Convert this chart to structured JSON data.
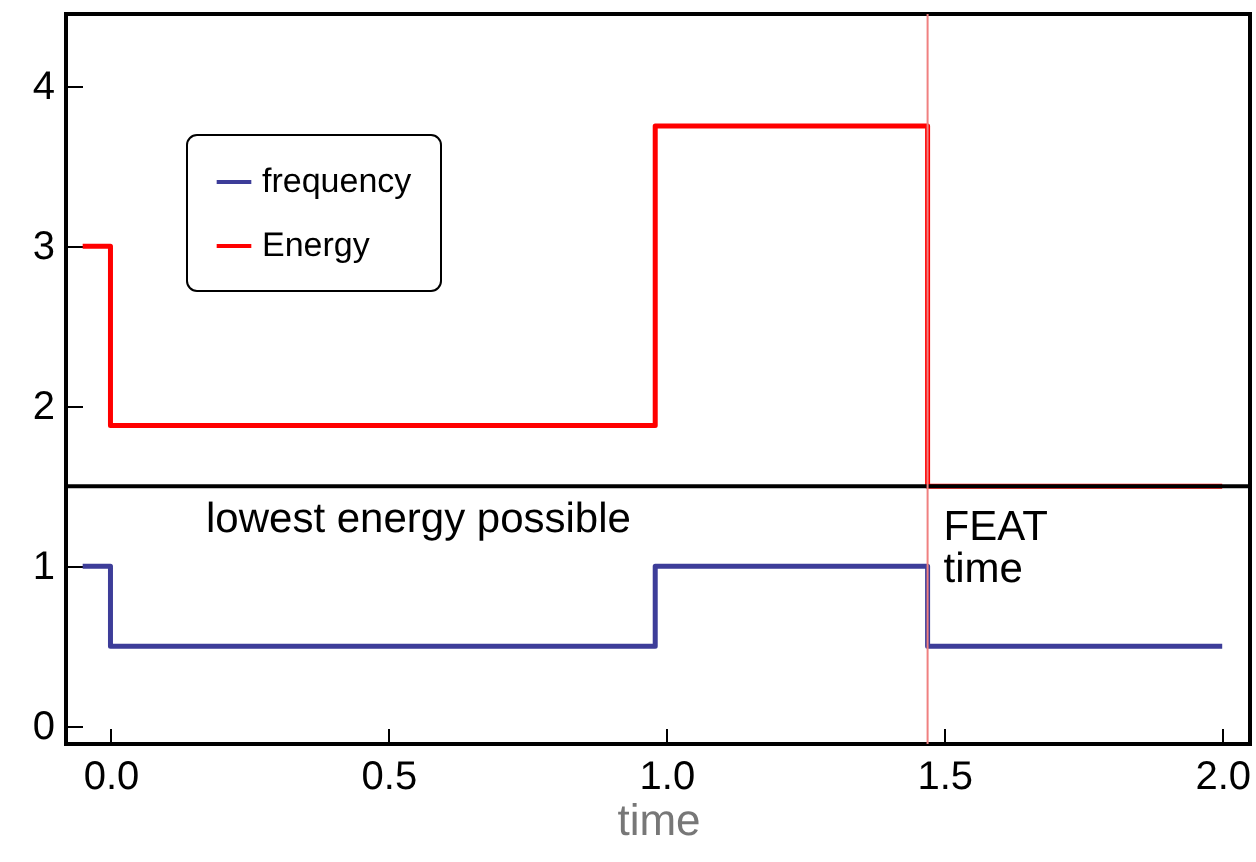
{
  "chart_data": {
    "type": "step",
    "xlabel": "time",
    "x": [
      -0.05,
      0,
      0.98,
      1.47,
      2.0
    ],
    "series": [
      {
        "name": "frequency",
        "color": "#3d3d99",
        "values": [
          1,
          0.5,
          1,
          0.5,
          0.5
        ]
      },
      {
        "name": "Energy",
        "color": "#ff0000",
        "values": [
          3,
          1.88,
          3.75,
          1.5,
          1.5
        ]
      }
    ],
    "xlim": [
      -0.08,
      2.05
    ],
    "xticks": [
      {
        "value": 0,
        "label": "0.0"
      },
      0.5,
      {
        "value": 1,
        "label": "1.0"
      },
      1.5,
      {
        "value": 2,
        "label": "2.0"
      }
    ],
    "ylim": [
      -0.11,
      4.45
    ],
    "yticks": [
      0,
      1,
      2,
      3,
      4
    ],
    "ref_lines": [
      {
        "axis": "y",
        "value": 1.5,
        "label": "lowest energy possible",
        "color": "#000000"
      },
      {
        "axis": "x",
        "value": 1.47,
        "label": "FEAT time",
        "color": "#f08080"
      }
    ],
    "grid": false,
    "legend": "top left",
    "line_style": "solid",
    "marker": "none"
  }
}
